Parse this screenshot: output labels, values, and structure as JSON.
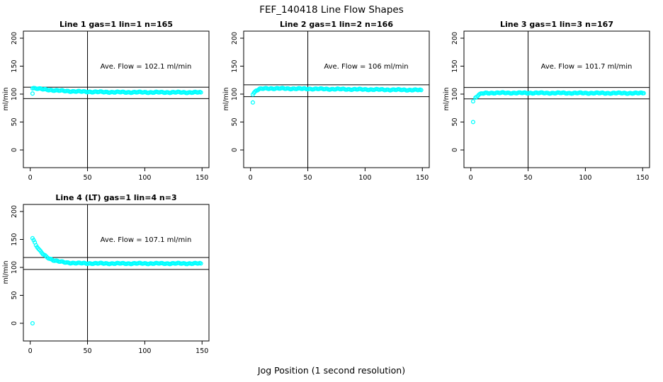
{
  "title": "FEF_140418  Line Flow Shapes",
  "outer_xlabel": "Jog Position (1 second resolution)",
  "colors": {
    "points": "#00ffff",
    "axis": "#000000",
    "background": "#ffffff"
  },
  "chart_data": [
    {
      "type": "scatter",
      "title": "Line 1 gas=1 lin=1 n=165",
      "annotation": "Ave. Flow =  102.1  ml/min",
      "ave_flow": 102.1,
      "n": 165,
      "ylabel": "ml/min",
      "xlim": [
        0,
        150
      ],
      "ylim": [
        0,
        200
      ],
      "xticks": [
        0,
        50,
        100,
        150
      ],
      "yticks": [
        0,
        50,
        100,
        150,
        200
      ],
      "grid": false,
      "legend": "none",
      "vline_x": 50,
      "hlines": [
        112.3,
        91.9
      ],
      "outliers": [
        [
          2,
          101
        ]
      ],
      "points": [
        [
          2,
          111.0
        ],
        [
          5,
          110.1
        ],
        [
          8,
          109.3
        ],
        [
          11,
          108.6
        ],
        [
          14,
          108.0
        ],
        [
          17,
          107.4
        ],
        [
          20,
          106.9
        ],
        [
          23,
          106.5
        ],
        [
          26,
          106.1
        ],
        [
          29,
          105.7
        ],
        [
          32,
          105.4
        ],
        [
          35,
          105.1
        ],
        [
          38,
          104.9
        ],
        [
          41,
          104.7
        ],
        [
          44,
          104.5
        ],
        [
          47,
          104.3
        ],
        [
          50,
          104.2
        ],
        [
          53,
          104.0
        ],
        [
          56,
          103.9
        ],
        [
          59,
          103.8
        ],
        [
          62,
          103.7
        ],
        [
          65,
          103.6
        ],
        [
          68,
          103.6
        ],
        [
          71,
          103.5
        ],
        [
          74,
          103.4
        ],
        [
          77,
          103.4
        ],
        [
          80,
          103.4
        ],
        [
          83,
          103.3
        ],
        [
          86,
          103.3
        ],
        [
          89,
          103.2
        ],
        [
          92,
          103.2
        ],
        [
          95,
          103.2
        ],
        [
          98,
          103.2
        ],
        [
          101,
          103.2
        ],
        [
          104,
          103.1
        ],
        [
          107,
          103.1
        ],
        [
          110,
          103.1
        ],
        [
          113,
          103.1
        ],
        [
          116,
          103.1
        ],
        [
          119,
          103.1
        ],
        [
          122,
          103.1
        ],
        [
          125,
          103.1
        ],
        [
          128,
          103.1
        ],
        [
          131,
          103.0
        ],
        [
          134,
          103.0
        ],
        [
          137,
          103.0
        ],
        [
          140,
          103.0
        ],
        [
          143,
          103.0
        ],
        [
          146,
          103.0
        ],
        [
          149,
          103.0
        ]
      ]
    },
    {
      "type": "scatter",
      "title": "Line 2 gas=1 lin=2 n=166",
      "annotation": "Ave. Flow =  106  ml/min",
      "ave_flow": 106,
      "n": 166,
      "ylabel": "ml/min",
      "xlim": [
        0,
        150
      ],
      "ylim": [
        0,
        200
      ],
      "xticks": [
        0,
        50,
        100,
        150
      ],
      "yticks": [
        0,
        50,
        100,
        150,
        200
      ],
      "grid": false,
      "legend": "none",
      "vline_x": 50,
      "hlines": [
        116.6,
        95.4
      ],
      "outliers": [
        [
          2,
          85
        ]
      ],
      "points": [
        [
          2,
          100.0
        ],
        [
          5,
          106.5
        ],
        [
          8,
          108.9
        ],
        [
          11,
          109.7
        ],
        [
          14,
          110.0
        ],
        [
          17,
          110.1
        ],
        [
          20,
          110.0
        ],
        [
          23,
          110.0
        ],
        [
          26,
          109.9
        ],
        [
          29,
          109.9
        ],
        [
          32,
          109.8
        ],
        [
          35,
          109.7
        ],
        [
          38,
          109.7
        ],
        [
          41,
          109.6
        ],
        [
          44,
          109.5
        ],
        [
          47,
          109.5
        ],
        [
          50,
          109.4
        ],
        [
          53,
          109.3
        ],
        [
          56,
          109.3
        ],
        [
          59,
          109.2
        ],
        [
          62,
          109.1
        ],
        [
          65,
          109.1
        ],
        [
          68,
          109.0
        ],
        [
          71,
          108.9
        ],
        [
          74,
          108.9
        ],
        [
          77,
          108.8
        ],
        [
          80,
          108.7
        ],
        [
          83,
          108.7
        ],
        [
          86,
          108.6
        ],
        [
          89,
          108.5
        ],
        [
          92,
          108.5
        ],
        [
          95,
          108.4
        ],
        [
          98,
          108.3
        ],
        [
          101,
          108.3
        ],
        [
          104,
          108.2
        ],
        [
          107,
          108.1
        ],
        [
          110,
          108.1
        ],
        [
          113,
          108.0
        ],
        [
          116,
          107.9
        ],
        [
          119,
          107.9
        ],
        [
          122,
          107.8
        ],
        [
          125,
          107.7
        ],
        [
          128,
          107.7
        ],
        [
          131,
          107.6
        ],
        [
          134,
          107.6
        ],
        [
          137,
          107.5
        ],
        [
          140,
          107.4
        ],
        [
          143,
          107.4
        ],
        [
          146,
          107.3
        ],
        [
          149,
          107.2
        ]
      ]
    },
    {
      "type": "scatter",
      "title": "Line 3 gas=1 lin=3 n=167",
      "annotation": "Ave. Flow =  101.7  ml/min",
      "ave_flow": 101.7,
      "n": 167,
      "ylabel": "ml/min",
      "xlim": [
        0,
        150
      ],
      "ylim": [
        0,
        200
      ],
      "xticks": [
        0,
        50,
        100,
        150
      ],
      "yticks": [
        0,
        50,
        100,
        150,
        200
      ],
      "grid": false,
      "legend": "none",
      "vline_x": 50,
      "hlines": [
        111.9,
        91.5
      ],
      "outliers": [
        [
          2,
          87
        ],
        [
          2,
          50
        ]
      ],
      "points": [
        [
          4,
          93.2
        ],
        [
          7,
          98.9
        ],
        [
          10,
          100.9
        ],
        [
          13,
          101.7
        ],
        [
          16,
          102.0
        ],
        [
          19,
          102.1
        ],
        [
          22,
          102.1
        ],
        [
          25,
          102.1
        ],
        [
          28,
          102.1
        ],
        [
          31,
          102.1
        ],
        [
          34,
          102.1
        ],
        [
          37,
          102.0
        ],
        [
          40,
          102.0
        ],
        [
          43,
          102.0
        ],
        [
          46,
          102.0
        ],
        [
          49,
          102.0
        ],
        [
          52,
          102.0
        ],
        [
          55,
          102.0
        ],
        [
          58,
          102.0
        ],
        [
          61,
          101.9
        ],
        [
          64,
          101.9
        ],
        [
          67,
          101.9
        ],
        [
          70,
          101.9
        ],
        [
          73,
          101.9
        ],
        [
          76,
          101.9
        ],
        [
          79,
          101.9
        ],
        [
          82,
          101.9
        ],
        [
          85,
          101.8
        ],
        [
          88,
          101.8
        ],
        [
          91,
          101.8
        ],
        [
          94,
          101.8
        ],
        [
          97,
          101.8
        ],
        [
          100,
          101.8
        ],
        [
          103,
          101.8
        ],
        [
          106,
          101.8
        ],
        [
          109,
          101.8
        ],
        [
          112,
          101.7
        ],
        [
          115,
          101.7
        ],
        [
          118,
          101.7
        ],
        [
          121,
          101.7
        ],
        [
          124,
          101.7
        ],
        [
          127,
          101.7
        ],
        [
          130,
          101.7
        ],
        [
          133,
          101.7
        ],
        [
          136,
          101.7
        ],
        [
          139,
          101.6
        ],
        [
          142,
          101.6
        ],
        [
          145,
          101.6
        ],
        [
          148,
          101.6
        ],
        [
          151,
          101.6
        ]
      ]
    },
    {
      "type": "scatter",
      "title": "Line 4 (LT) gas=1 lin=4 n=3",
      "annotation": "Ave. Flow =  107.1  ml/min",
      "ave_flow": 107.1,
      "n": 3,
      "ylabel": "ml/min",
      "xlim": [
        0,
        150
      ],
      "ylim": [
        0,
        200
      ],
      "xticks": [
        0,
        50,
        100,
        150
      ],
      "yticks": [
        0,
        50,
        100,
        150,
        200
      ],
      "grid": false,
      "legend": "none",
      "vline_x": 50,
      "hlines": [
        117.8,
        96.4
      ],
      "outliers": [
        [
          2,
          0
        ]
      ],
      "points": [
        [
          2,
          153.0
        ],
        [
          5,
          140.0
        ],
        [
          8,
          130.6
        ],
        [
          11,
          123.9
        ],
        [
          14,
          119.1
        ],
        [
          17,
          115.7
        ],
        [
          20,
          113.2
        ],
        [
          23,
          111.5
        ],
        [
          26,
          110.2
        ],
        [
          29,
          109.3
        ],
        [
          32,
          108.6
        ],
        [
          35,
          108.2
        ],
        [
          38,
          107.8
        ],
        [
          41,
          107.6
        ],
        [
          44,
          107.4
        ],
        [
          47,
          107.3
        ],
        [
          50,
          107.2
        ],
        [
          53,
          107.2
        ],
        [
          56,
          107.1
        ],
        [
          59,
          107.1
        ],
        [
          62,
          107.1
        ],
        [
          65,
          107.1
        ],
        [
          68,
          107.0
        ],
        [
          71,
          107.0
        ],
        [
          74,
          107.0
        ],
        [
          77,
          107.0
        ],
        [
          80,
          107.0
        ],
        [
          83,
          107.0
        ],
        [
          86,
          107.0
        ],
        [
          89,
          107.0
        ],
        [
          92,
          107.0
        ],
        [
          95,
          107.0
        ],
        [
          98,
          107.0
        ],
        [
          101,
          107.0
        ],
        [
          104,
          107.0
        ],
        [
          107,
          107.0
        ],
        [
          110,
          107.0
        ],
        [
          113,
          107.0
        ],
        [
          116,
          107.0
        ],
        [
          119,
          107.0
        ],
        [
          122,
          107.0
        ],
        [
          125,
          107.0
        ],
        [
          128,
          107.0
        ],
        [
          131,
          107.0
        ],
        [
          134,
          107.0
        ],
        [
          137,
          107.0
        ],
        [
          140,
          107.0
        ],
        [
          143,
          107.0
        ],
        [
          146,
          107.0
        ],
        [
          149,
          107.0
        ]
      ]
    }
  ]
}
